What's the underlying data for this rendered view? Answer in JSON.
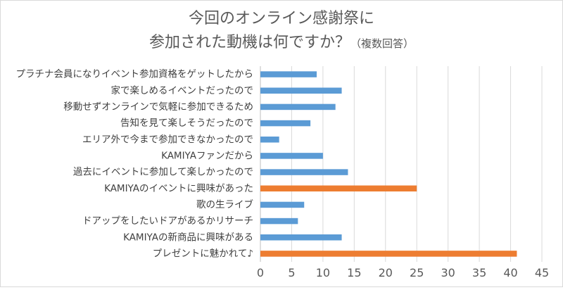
{
  "chart_data": {
    "type": "bar",
    "orientation": "horizontal",
    "title_line1": "今回のオンライン感謝祭に",
    "title_line2": "参加された動機は何ですか？",
    "title_note": "（複数回答）",
    "categories": [
      "プラチナ会員になりイベント参加資格をゲットしたから",
      "家で楽しめるイベントだったので",
      "移動せずオンラインで気軽に参加できるため",
      "告知を見て楽しそうだったので",
      "エリア外で今まで参加できなかったので",
      "KAMIYAファンだから",
      "過去にイベントに参加して楽しかったので",
      "KAMIYAのイベントに興味があった",
      "歌の生ライブ",
      "ドアップをしたいドアがあるかリサーチ",
      "KAMIYAの新商品に興味がある",
      "プレゼントに魅かれて♪"
    ],
    "values": [
      9,
      13,
      12,
      8,
      3,
      10,
      14,
      25,
      7,
      6,
      13,
      41
    ],
    "highlight": [
      false,
      false,
      false,
      false,
      false,
      false,
      false,
      true,
      false,
      false,
      false,
      true
    ],
    "xlim": [
      0,
      45
    ],
    "xticks": [
      0,
      5,
      10,
      15,
      20,
      25,
      30,
      35,
      40,
      45
    ],
    "grid": true,
    "legend": "none",
    "colors": {
      "default": "#5b9bd5",
      "highlight": "#ed7d31",
      "grid": "#d9d9d9",
      "axis": "#bfbfbf"
    }
  }
}
